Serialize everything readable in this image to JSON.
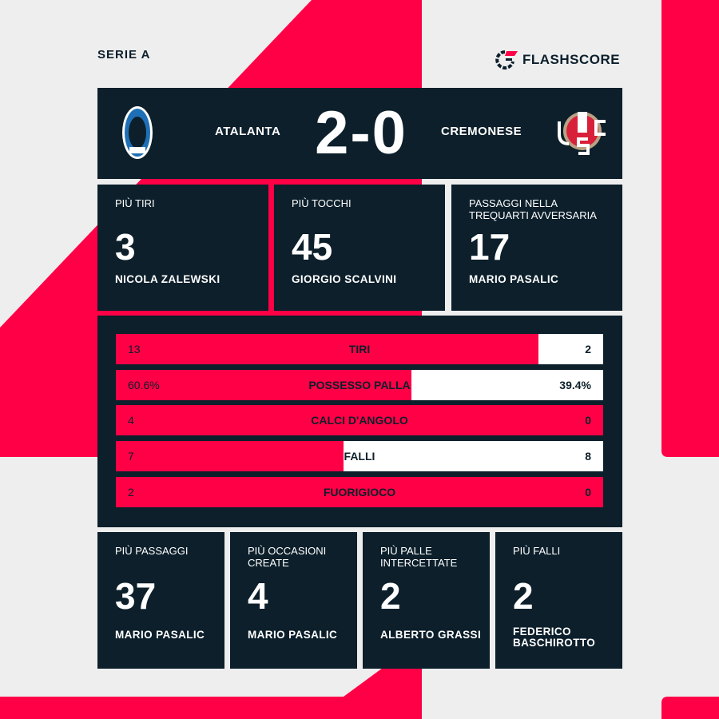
{
  "league": "SERIE A",
  "brand": "FLASHSCORE",
  "colors": {
    "accent": "#ff0046",
    "card": "#0c1f2b",
    "background": "#eeeeef"
  },
  "match": {
    "home": "ATALANTA",
    "away": "CREMONESE",
    "home_score": "2",
    "separator": "-",
    "away_score": "0"
  },
  "top_cards": [
    {
      "label": "PIÙ TIRI",
      "value": "3",
      "player": "NICOLA ZALEWSKI"
    },
    {
      "label": "PIÙ TOCCHI",
      "value": "45",
      "player": "GIORGIO SCALVINI"
    },
    {
      "label": "PASSAGGI NELLA TREQUARTI AVVERSARIA",
      "value": "17",
      "player": "MARIO PASALIC"
    }
  ],
  "stats": [
    {
      "name": "TIRI",
      "home": "13",
      "away": "2",
      "home_share": 0.867
    },
    {
      "name": "POSSESSO PALLA",
      "home": "60.6%",
      "away": "39.4%",
      "home_share": 0.606
    },
    {
      "name": "CALCI D'ANGOLO",
      "home": "4",
      "away": "0",
      "home_share": 1
    },
    {
      "name": "FALLI",
      "home": "7",
      "away": "8",
      "home_share": 0.467
    },
    {
      "name": "FUORIGIOCO",
      "home": "2",
      "away": "0",
      "home_share": 1
    }
  ],
  "bottom_cards": [
    {
      "label": "PIÙ PASSAGGI",
      "value": "37",
      "player": "MARIO PASALIC"
    },
    {
      "label": "PIÙ OCCASIONI CREATE",
      "value": "4",
      "player": "MARIO PASALIC"
    },
    {
      "label": "PIÙ PALLE INTERCETTATE",
      "value": "2",
      "player": "ALBERTO GRASSI"
    },
    {
      "label": "PIÙ FALLI",
      "value": "2",
      "player": "FEDERICO BASCHIROTTO"
    }
  ]
}
